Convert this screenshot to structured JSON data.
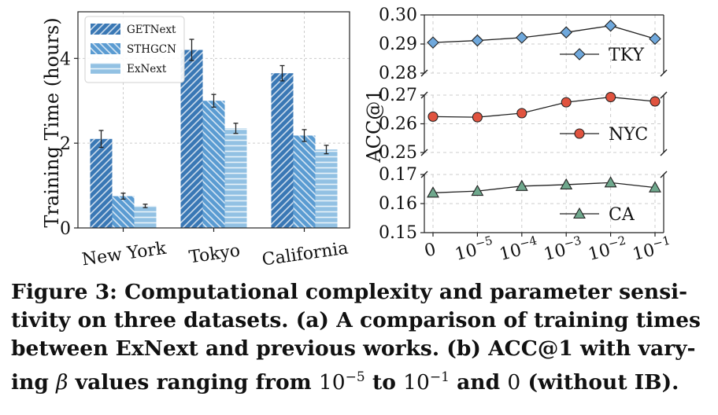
{
  "chart_data": [
    {
      "type": "bar",
      "categories": [
        "New York",
        "Tokyo",
        "California"
      ],
      "series": [
        {
          "name": "GETNext",
          "values": [
            2.1,
            4.2,
            3.65
          ],
          "errors": [
            0.2,
            0.25,
            0.18
          ],
          "color": "#3a78b5"
        },
        {
          "name": "STHGCN",
          "values": [
            0.75,
            3.0,
            2.18
          ],
          "errors": [
            0.07,
            0.15,
            0.14
          ],
          "color": "#5b9cd2"
        },
        {
          "name": "ExNext",
          "values": [
            0.52,
            2.35,
            1.85
          ],
          "errors": [
            0.04,
            0.12,
            0.1
          ],
          "color": "#92c1e3"
        }
      ],
      "ylabel": "Training Time (hours)",
      "ylim": [
        0,
        5.1
      ],
      "yticks": [
        "0",
        "2",
        "4"
      ],
      "grid": true,
      "legend_placement": "top-left"
    },
    {
      "type": "line",
      "x": [
        "0",
        "10^-5",
        "10^-4",
        "10^-3",
        "10^-2",
        "10^-1"
      ],
      "xtick_bases": [
        "0",
        "10",
        "10",
        "10",
        "10",
        "10"
      ],
      "xtick_exps": [
        "",
        "−5",
        "−4",
        "−3",
        "−2",
        "−1"
      ],
      "ylabel": "ACC@1",
      "grid": true,
      "panels": [
        {
          "name": "TKY",
          "values": [
            0.2905,
            0.2912,
            0.2922,
            0.294,
            0.2963,
            0.2918
          ],
          "ylim": [
            0.28,
            0.3
          ],
          "yticks": [
            "0.28",
            "0.29",
            "0.30"
          ],
          "marker": "diamond",
          "color": "#6fa8dc",
          "legend_placement": "lower-right"
        },
        {
          "name": "NYC",
          "values": [
            0.2625,
            0.2623,
            0.2637,
            0.2675,
            0.2693,
            0.2678
          ],
          "ylim": [
            0.25,
            0.27
          ],
          "yticks": [
            "0.25",
            "0.26",
            "0.27"
          ],
          "marker": "circle",
          "color": "#e0533f",
          "legend_placement": "lower-right"
        },
        {
          "name": "CA",
          "values": [
            0.1637,
            0.1643,
            0.166,
            0.1665,
            0.1672,
            0.1655
          ],
          "ylim": [
            0.15,
            0.17
          ],
          "yticks": [
            "0.15",
            "0.16",
            "0.17"
          ],
          "marker": "triangle",
          "color": "#6fa88d",
          "legend_placement": "lower-right"
        }
      ]
    }
  ],
  "caption": {
    "l1": "Figure 3: Computational complexity and parameter sensi-",
    "l2": "tivity on three datasets. (a) A comparison of training times",
    "l3": "between ExNext and previous works. (b) ACC@1 with vary-",
    "l4a": "ing",
    "l4beta": "β",
    "l4b": "values ranging from",
    "l4base1": "10",
    "l4exp1": "−5",
    "l4c": "to",
    "l4base2": "10",
    "l4exp2": "−1",
    "l4d": "and",
    "l4zero": "0",
    "l4e": "(without IB)."
  }
}
